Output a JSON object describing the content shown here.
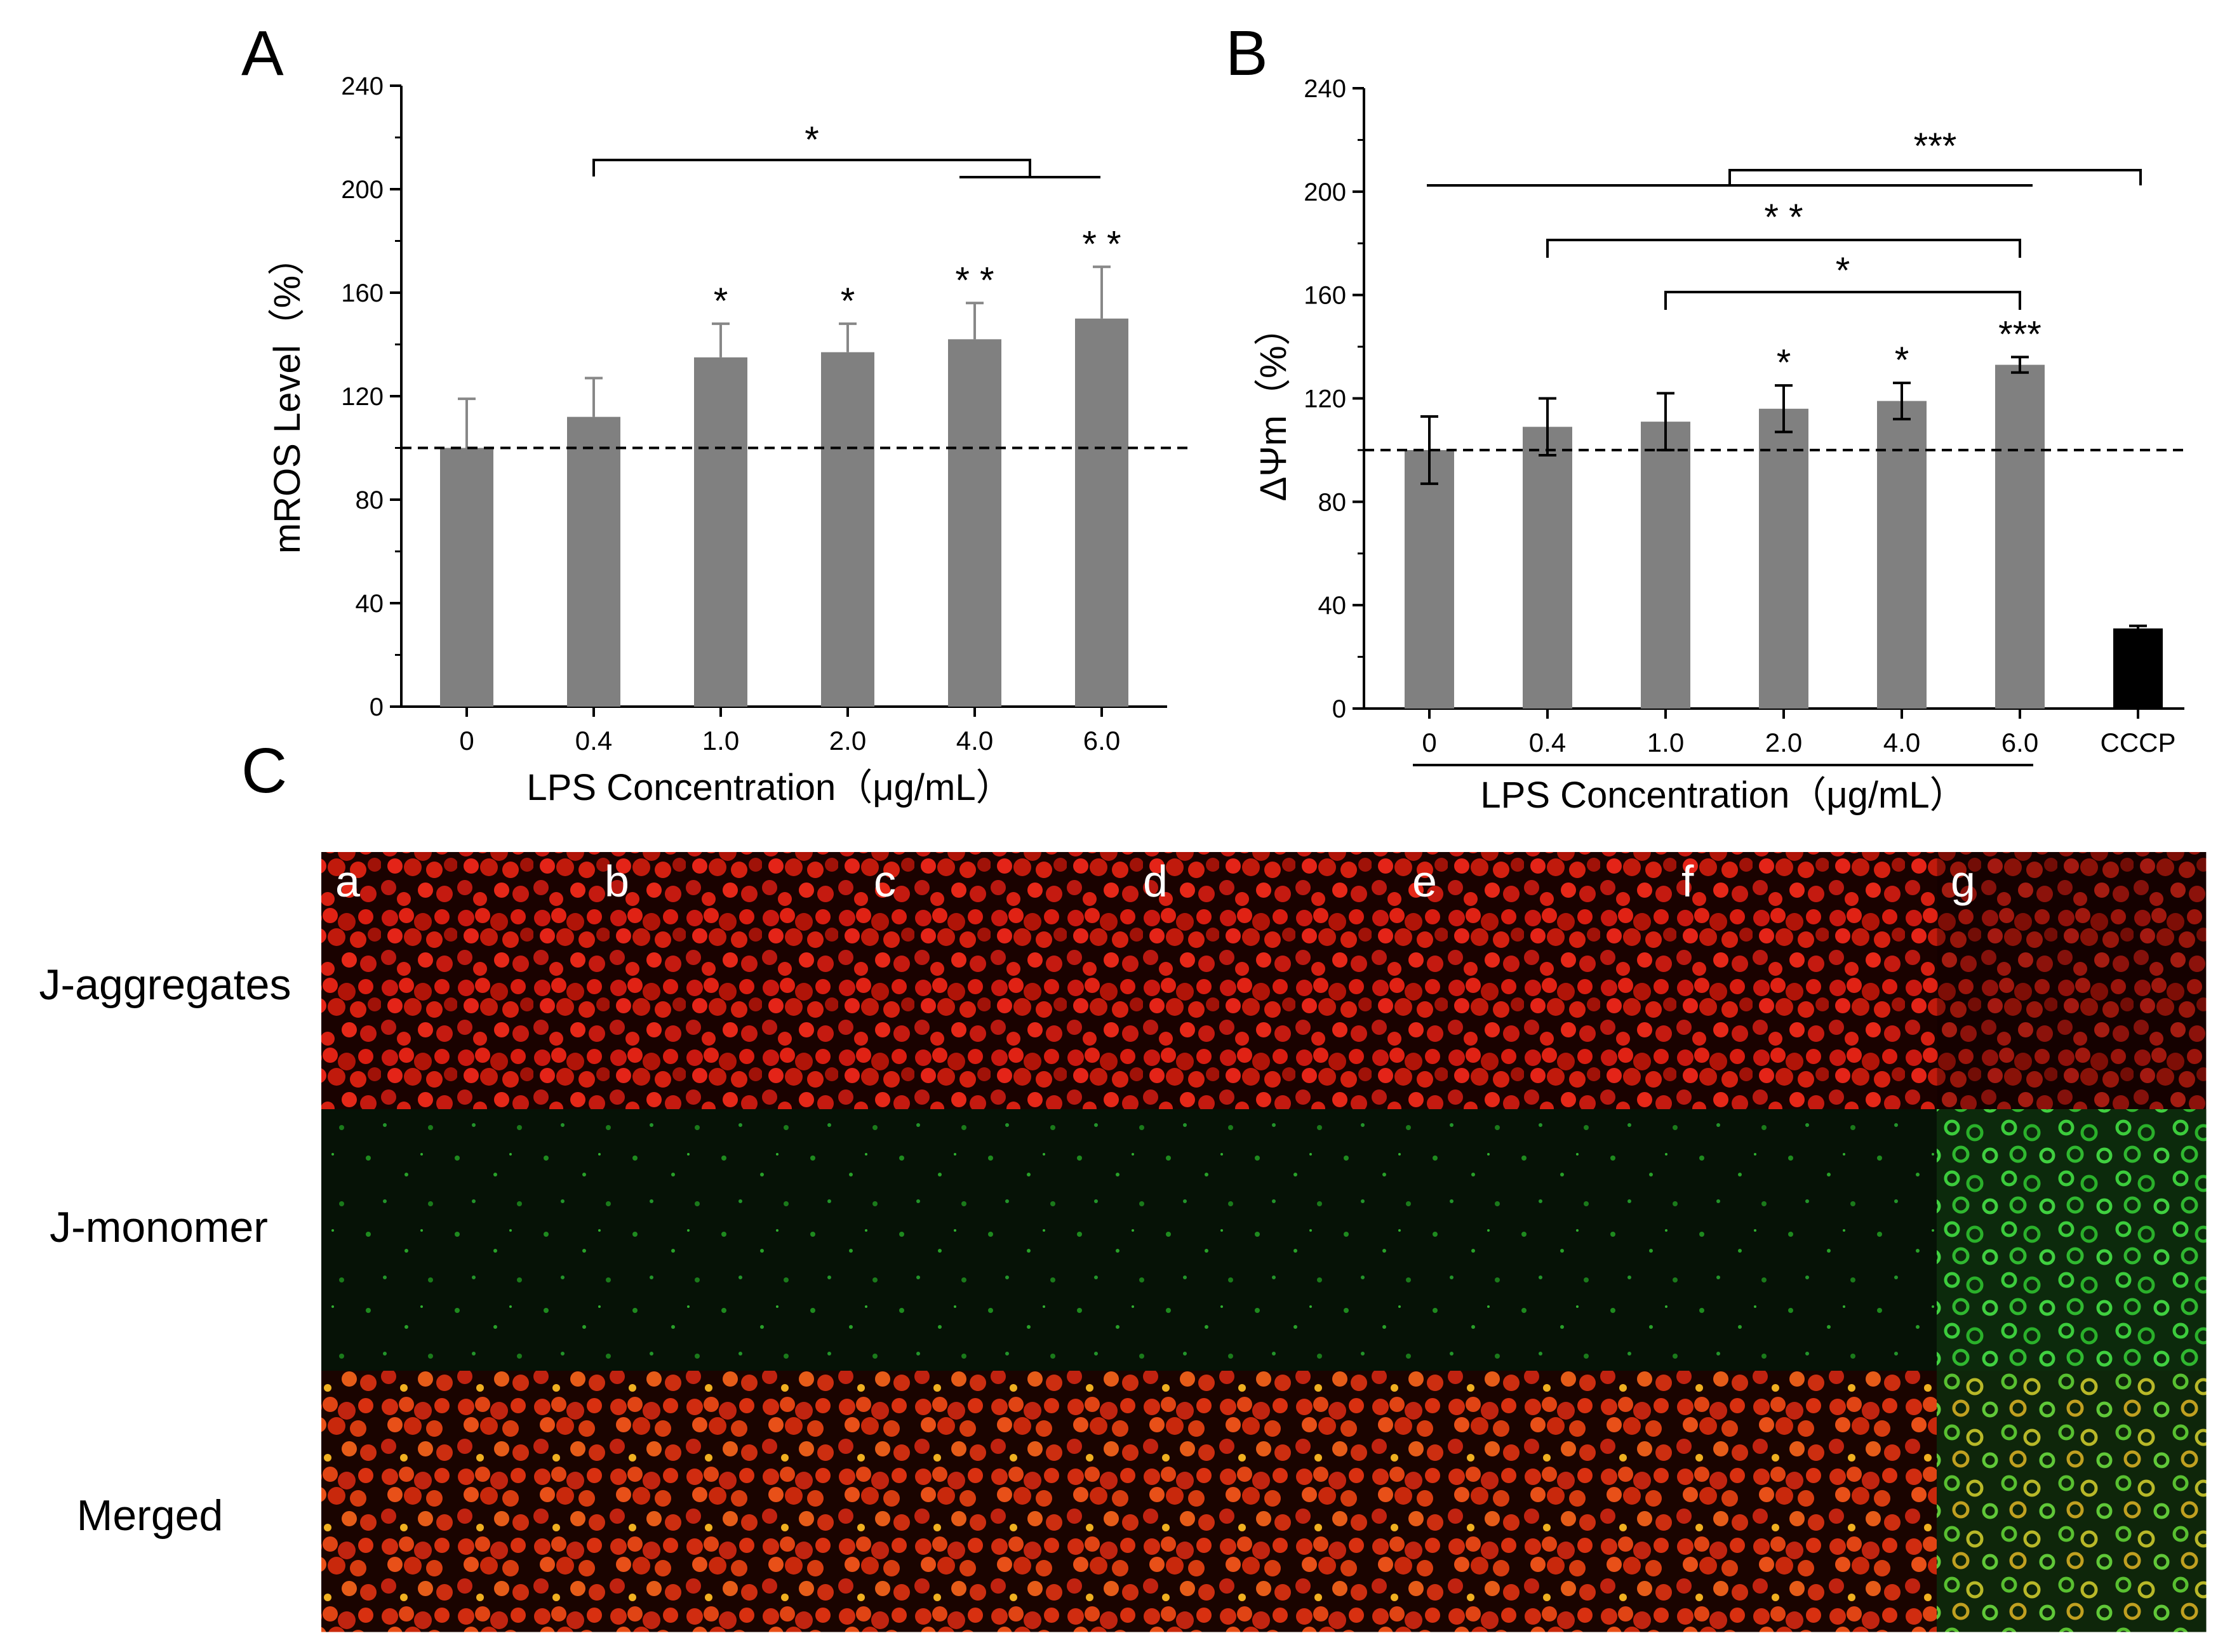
{
  "figure": {
    "panels": {
      "a": "A",
      "b": "B",
      "c": "C"
    },
    "micrograph": {
      "row_labels": [
        "J-aggregates",
        "J-monomer",
        "Merged"
      ],
      "column_labels": [
        "a",
        "b",
        "c",
        "d",
        "e",
        "f",
        "g"
      ],
      "colors": {
        "aggregate_red": "#d01810",
        "monomer_green": "#1fa01f",
        "merged_yellow": "#d8b020",
        "background": "#0a0000"
      }
    }
  },
  "chart_data": [
    {
      "id": "A",
      "type": "bar",
      "categories": [
        "0",
        "0.4",
        "1.0",
        "2.0",
        "4.0",
        "6.0"
      ],
      "values": [
        100,
        112,
        135,
        137,
        142,
        150
      ],
      "errors": [
        19,
        15,
        13,
        11,
        14,
        20
      ],
      "bar_colors": [
        "#808080",
        "#808080",
        "#808080",
        "#808080",
        "#808080",
        "#808080"
      ],
      "ylim": [
        0,
        240
      ],
      "yticks": [
        "0",
        "40",
        "80",
        "120",
        "160",
        "200",
        "240"
      ],
      "ylabel": "mROS Level（%）",
      "xlabel": "LPS Concentration（μg/mL）",
      "reference_line": 100,
      "bar_annotations": [
        "",
        "",
        "*",
        "*",
        "* *",
        "* *"
      ],
      "brackets": [
        {
          "label": "*",
          "from": 1,
          "to_group": [
            4,
            5
          ]
        }
      ]
    },
    {
      "id": "B",
      "type": "bar",
      "categories": [
        "0",
        "0.4",
        "1.0",
        "2.0",
        "4.0",
        "6.0",
        "CCCP"
      ],
      "values": [
        100,
        109,
        111,
        116,
        119,
        133,
        31
      ],
      "errors": [
        13,
        11,
        11,
        9,
        7,
        3,
        1
      ],
      "bar_colors": [
        "#808080",
        "#808080",
        "#808080",
        "#808080",
        "#808080",
        "#808080",
        "#000000"
      ],
      "ylim": [
        0,
        240
      ],
      "yticks": [
        "0",
        "40",
        "80",
        "120",
        "160",
        "200",
        "240"
      ],
      "ylabel": "ΔΨm（%）",
      "xlabel": "LPS Concentration（μg/mL）",
      "reference_line": 100,
      "bar_annotations": [
        "",
        "",
        "",
        "*",
        "*",
        "***",
        ""
      ],
      "brackets": [
        {
          "label": "***",
          "from_group": [
            0,
            5
          ],
          "to": 6
        },
        {
          "label": "* *",
          "from": 1,
          "to": 5
        },
        {
          "label": "*",
          "from": 2,
          "to": 5
        }
      ]
    }
  ]
}
